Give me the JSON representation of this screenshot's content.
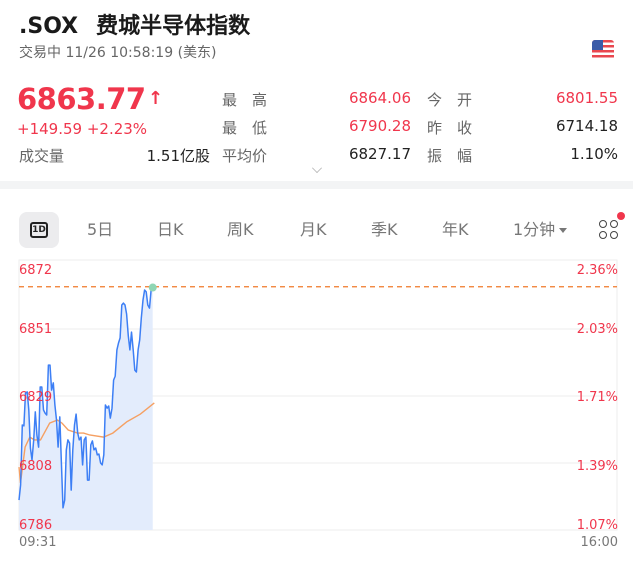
{
  "header": {
    "symbol": ".SOX",
    "name": "费城半导体指数",
    "status": "交易中 11/26 10:58:19 (美东)",
    "flag_icon": "us-flag-icon"
  },
  "quote": {
    "price": "6863.77",
    "direction_icon": "arrow-up-icon",
    "change": "+149.59",
    "change_pct": "+2.23%",
    "up_color": "#f0364c"
  },
  "stats": [
    {
      "label": "最　高",
      "value": "6864.06",
      "red": true
    },
    {
      "label": "今　开",
      "value": "6801.55",
      "red": true
    },
    {
      "label": "最　低",
      "value": "6790.28",
      "red": true
    },
    {
      "label": "昨　收",
      "value": "6714.18",
      "red": false
    },
    {
      "label": "成交量",
      "value": "1.51亿股",
      "red": false
    },
    {
      "label": "平均价",
      "value": "6827.17",
      "red": false
    },
    {
      "label": "振　幅",
      "value": "1.10%",
      "red": false
    }
  ],
  "tabs": [
    {
      "label": "1D",
      "active": true
    },
    {
      "label": "5日"
    },
    {
      "label": "日K"
    },
    {
      "label": "周K"
    },
    {
      "label": "月K"
    },
    {
      "label": "季K"
    },
    {
      "label": "年K"
    },
    {
      "label": "1分钟"
    }
  ],
  "chart_data": {
    "type": "line",
    "y_ticks": [
      "6872",
      "6851",
      "6829",
      "6808",
      "6786"
    ],
    "y_right_ticks": [
      "2.36%",
      "2.03%",
      "1.71%",
      "1.39%",
      "1.07%"
    ],
    "x_ticks": [
      "09:31",
      "16:00"
    ],
    "ylim": [
      6786,
      6872
    ],
    "x_range": [
      "09:31",
      "16:00"
    ],
    "grid": true,
    "reference_line": {
      "value": 6864.06,
      "style": "dashed",
      "color": "#f07a2a"
    },
    "series": [
      {
        "color": "#3d7ff5",
        "fill": "#e3ecfc",
        "start": "09:31",
        "end": "10:58",
        "values": [
          6795.6,
          6800.4,
          6819.7,
          6819.4,
          6830.0,
          6830.3,
          6824.5,
          6812.3,
          6808.5,
          6814.9,
          6823.9,
          6816.5,
          6812.6,
          6831.9,
          6831.9,
          6824.5,
          6823.5,
          6822.9,
          6838.9,
          6838.9,
          6830.9,
          6833.2,
          6826.1,
          6821.3,
          6812.6,
          6822.3,
          6807.5,
          6793.1,
          6795.6,
          6811.7,
          6814.9,
          6813.9,
          6798.8,
          6811.7,
          6819.7,
          6823.2,
          6817.1,
          6814.9,
          6815.8,
          6806.9,
          6814.9,
          6815.8,
          6802.0,
          6802.0,
          6813.3,
          6814.6,
          6811.7,
          6812.3,
          6810.1,
          6810.4,
          6807.5,
          6806.9,
          6810.1,
          6826.1,
          6825.1,
          6825.8,
          6821.9,
          6825.1,
          6834.1,
          6835.4,
          6843.8,
          6846.0,
          6847.6,
          6858.2,
          6858.8,
          6858.2,
          6855.3,
          6848.3,
          6843.8,
          6849.5,
          6843.8,
          6837.3,
          6836.7,
          6843.8,
          6847.0,
          6854.0,
          6859.8,
          6863.0,
          6862.4,
          6858.2,
          6857.2,
          6863.0,
          6863.8
        ]
      },
      {
        "color": "#f5a063",
        "points": [
          [
            "09:31",
            6806.2
          ],
          [
            "09:32",
            6801.1
          ],
          [
            "09:35",
            6812.6
          ],
          [
            "09:38",
            6815.8
          ],
          [
            "09:41",
            6814.9
          ],
          [
            "09:45",
            6814.9
          ],
          [
            "09:51",
            6820.3
          ],
          [
            "09:56",
            6821.3
          ],
          [
            "09:59",
            6820.3
          ],
          [
            "10:03",
            6818.1
          ],
          [
            "10:09",
            6817.1
          ],
          [
            "10:13",
            6817.1
          ],
          [
            "10:17",
            6816.5
          ],
          [
            "10:26",
            6815.8
          ],
          [
            "10:32",
            6817.1
          ],
          [
            "10:41",
            6820.7
          ],
          [
            "10:50",
            6823.2
          ],
          [
            "10:59",
            6826.8
          ]
        ]
      }
    ]
  }
}
